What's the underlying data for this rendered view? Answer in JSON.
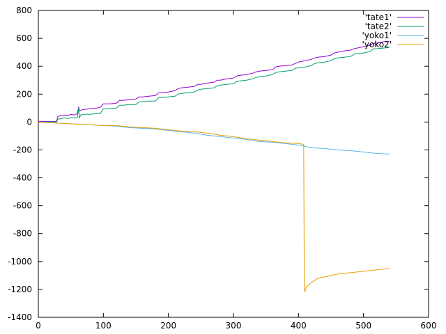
{
  "chart_data": {
    "type": "line",
    "title": "",
    "xlabel": "",
    "ylabel": "",
    "xlim": [
      0,
      600
    ],
    "ylim": [
      -1400,
      800
    ],
    "xticks": [
      0,
      100,
      200,
      300,
      400,
      500,
      600
    ],
    "yticks": [
      -1400,
      -1200,
      -1000,
      -800,
      -600,
      -400,
      -200,
      0,
      200,
      400,
      600,
      800
    ],
    "xtick_labels": [
      "0",
      "100",
      "200",
      "300",
      "400",
      "500",
      "600"
    ],
    "ytick_labels": [
      "-1400",
      "-1200",
      "-1000",
      "-800",
      "-600",
      "-400",
      "-200",
      "0",
      "200",
      "400",
      "600",
      "800"
    ],
    "grid": false,
    "legend_position": "top-right",
    "series": [
      {
        "name": "'tate1'",
        "color": "#9400d3",
        "x": [
          0,
          10,
          20,
          28,
          30,
          35,
          40,
          45,
          50,
          55,
          60,
          62,
          63,
          65,
          70,
          80,
          90,
          95,
          100,
          110,
          120,
          125,
          130,
          140,
          150,
          155,
          160,
          170,
          180,
          185,
          190,
          200,
          210,
          215,
          220,
          230,
          240,
          245,
          250,
          260,
          270,
          275,
          280,
          290,
          300,
          305,
          310,
          320,
          330,
          335,
          340,
          350,
          360,
          365,
          370,
          380,
          390,
          395,
          400,
          410,
          420,
          425,
          430,
          440,
          450,
          455,
          460,
          470,
          480,
          485,
          490,
          500,
          510,
          515,
          520,
          530,
          540
        ],
        "y": [
          5,
          5,
          5,
          5,
          40,
          45,
          50,
          45,
          55,
          50,
          60,
          110,
          80,
          85,
          90,
          95,
          100,
          105,
          130,
          130,
          135,
          155,
          155,
          160,
          165,
          180,
          180,
          185,
          190,
          210,
          210,
          215,
          225,
          240,
          245,
          250,
          255,
          270,
          270,
          280,
          285,
          300,
          300,
          310,
          315,
          330,
          335,
          340,
          350,
          360,
          365,
          370,
          375,
          395,
          400,
          405,
          410,
          420,
          430,
          440,
          450,
          460,
          465,
          470,
          480,
          495,
          500,
          510,
          515,
          525,
          530,
          540,
          550,
          565,
          565,
          575,
          580
        ]
      },
      {
        "name": "'tate2'",
        "color": "#009e73",
        "x": [
          0,
          10,
          20,
          28,
          30,
          35,
          40,
          45,
          50,
          55,
          60,
          62,
          63,
          65,
          70,
          80,
          90,
          95,
          100,
          110,
          120,
          125,
          130,
          140,
          150,
          155,
          160,
          170,
          180,
          185,
          190,
          200,
          210,
          215,
          220,
          230,
          240,
          245,
          250,
          260,
          270,
          275,
          280,
          290,
          300,
          305,
          310,
          320,
          330,
          335,
          340,
          350,
          360,
          365,
          370,
          380,
          390,
          395,
          400,
          410,
          420,
          425,
          430,
          440,
          450,
          455,
          460,
          470,
          480,
          485,
          490,
          500,
          510,
          515,
          520,
          530,
          540
        ],
        "y": [
          -2,
          0,
          2,
          0,
          20,
          25,
          30,
          25,
          30,
          30,
          30,
          100,
          30,
          50,
          55,
          55,
          60,
          60,
          95,
          95,
          100,
          120,
          120,
          125,
          125,
          145,
          145,
          150,
          150,
          175,
          175,
          180,
          185,
          200,
          205,
          210,
          215,
          230,
          235,
          240,
          245,
          260,
          265,
          270,
          275,
          290,
          295,
          300,
          310,
          320,
          325,
          330,
          340,
          355,
          360,
          365,
          370,
          385,
          390,
          395,
          405,
          420,
          425,
          430,
          440,
          455,
          460,
          465,
          470,
          485,
          490,
          495,
          505,
          525,
          525,
          530,
          535
        ]
      },
      {
        "name": "'yoko1'",
        "color": "#56b4e9",
        "x": [
          0,
          20,
          40,
          60,
          80,
          100,
          120,
          140,
          160,
          180,
          200,
          220,
          240,
          260,
          280,
          300,
          320,
          340,
          360,
          380,
          400,
          420,
          440,
          460,
          480,
          500,
          520,
          540
        ],
        "y": [
          0,
          -5,
          -10,
          -15,
          -20,
          -25,
          -30,
          -40,
          -45,
          -50,
          -60,
          -70,
          -80,
          -95,
          -105,
          -115,
          -125,
          -140,
          -145,
          -155,
          -165,
          -185,
          -190,
          -200,
          -205,
          -215,
          -225,
          -230
        ]
      },
      {
        "name": "'yoko2'",
        "color": "#e69f00",
        "x": [
          0,
          20,
          40,
          60,
          80,
          100,
          120,
          140,
          160,
          180,
          200,
          220,
          240,
          260,
          280,
          300,
          320,
          340,
          360,
          380,
          400,
          408,
          409,
          410,
          412,
          415,
          420,
          430,
          440,
          460,
          480,
          500,
          520,
          540
        ],
        "y": [
          0,
          -5,
          -10,
          -15,
          -20,
          -25,
          -25,
          -35,
          -40,
          -45,
          -55,
          -65,
          -70,
          -80,
          -95,
          -105,
          -120,
          -130,
          -140,
          -150,
          -155,
          -160,
          -1200,
          -1215,
          -1180,
          -1170,
          -1150,
          -1120,
          -1110,
          -1090,
          -1080,
          -1070,
          -1060,
          -1050
        ]
      }
    ]
  }
}
